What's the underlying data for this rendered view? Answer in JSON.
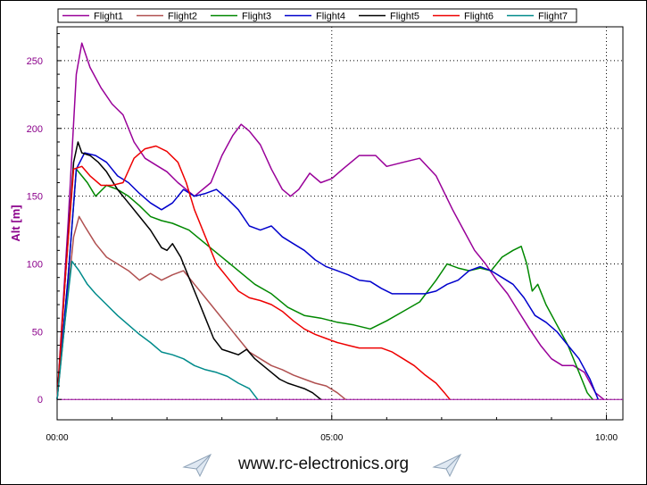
{
  "chart_data": {
    "type": "line",
    "title": "",
    "xlabel": "",
    "ylabel": "Alt [m]",
    "x_unit": "minutes",
    "xlim": [
      0,
      10.3
    ],
    "ylim": [
      -15,
      275
    ],
    "x_ticks": [
      {
        "value": 0,
        "label": "00:00"
      },
      {
        "value": 5,
        "label": "05:00"
      },
      {
        "value": 10,
        "label": "10:00"
      }
    ],
    "y_ticks": [
      0,
      50,
      100,
      150,
      200,
      250
    ],
    "grid": "dotted",
    "legend_position": "top",
    "zero_line_color": "#990099",
    "series": [
      {
        "name": "Flight1",
        "color": "#990099",
        "points": [
          [
            0,
            0
          ],
          [
            0.2,
            130
          ],
          [
            0.35,
            240
          ],
          [
            0.45,
            263
          ],
          [
            0.6,
            245
          ],
          [
            0.8,
            230
          ],
          [
            1.0,
            218
          ],
          [
            1.2,
            210
          ],
          [
            1.4,
            190
          ],
          [
            1.6,
            178
          ],
          [
            1.8,
            173
          ],
          [
            2.0,
            168
          ],
          [
            2.2,
            160
          ],
          [
            2.5,
            150
          ],
          [
            2.8,
            160
          ],
          [
            3.0,
            180
          ],
          [
            3.2,
            195
          ],
          [
            3.35,
            203
          ],
          [
            3.5,
            198
          ],
          [
            3.7,
            188
          ],
          [
            3.9,
            170
          ],
          [
            4.1,
            155
          ],
          [
            4.25,
            150
          ],
          [
            4.4,
            155
          ],
          [
            4.6,
            167
          ],
          [
            4.8,
            160
          ],
          [
            5.0,
            163
          ],
          [
            5.2,
            170
          ],
          [
            5.5,
            180
          ],
          [
            5.8,
            180
          ],
          [
            6.0,
            172
          ],
          [
            6.3,
            175
          ],
          [
            6.6,
            178
          ],
          [
            6.9,
            165
          ],
          [
            7.2,
            140
          ],
          [
            7.4,
            125
          ],
          [
            7.6,
            110
          ],
          [
            7.8,
            100
          ],
          [
            8.0,
            88
          ],
          [
            8.2,
            78
          ],
          [
            8.4,
            65
          ],
          [
            8.6,
            52
          ],
          [
            8.8,
            40
          ],
          [
            9.0,
            30
          ],
          [
            9.2,
            25
          ],
          [
            9.4,
            25
          ],
          [
            9.6,
            20
          ],
          [
            9.8,
            5
          ],
          [
            9.95,
            0
          ]
        ]
      },
      {
        "name": "Flight2",
        "color": "#b05050",
        "points": [
          [
            0,
            0
          ],
          [
            0.15,
            60
          ],
          [
            0.3,
            120
          ],
          [
            0.4,
            135
          ],
          [
            0.5,
            128
          ],
          [
            0.7,
            115
          ],
          [
            0.9,
            105
          ],
          [
            1.1,
            100
          ],
          [
            1.3,
            95
          ],
          [
            1.5,
            88
          ],
          [
            1.7,
            93
          ],
          [
            1.9,
            88
          ],
          [
            2.1,
            92
          ],
          [
            2.3,
            95
          ],
          [
            2.5,
            85
          ],
          [
            2.7,
            75
          ],
          [
            2.9,
            65
          ],
          [
            3.1,
            55
          ],
          [
            3.3,
            45
          ],
          [
            3.5,
            35
          ],
          [
            3.7,
            30
          ],
          [
            3.9,
            25
          ],
          [
            4.1,
            22
          ],
          [
            4.3,
            18
          ],
          [
            4.5,
            15
          ],
          [
            4.7,
            12
          ],
          [
            4.9,
            10
          ],
          [
            5.1,
            5
          ],
          [
            5.25,
            0
          ]
        ]
      },
      {
        "name": "Flight3",
        "color": "#008800",
        "points": [
          [
            0,
            0
          ],
          [
            0.2,
            90
          ],
          [
            0.35,
            170
          ],
          [
            0.45,
            165
          ],
          [
            0.55,
            160
          ],
          [
            0.7,
            150
          ],
          [
            0.9,
            158
          ],
          [
            1.1,
            155
          ],
          [
            1.3,
            150
          ],
          [
            1.5,
            143
          ],
          [
            1.7,
            135
          ],
          [
            1.9,
            132
          ],
          [
            2.1,
            130
          ],
          [
            2.4,
            125
          ],
          [
            2.7,
            115
          ],
          [
            3.0,
            105
          ],
          [
            3.3,
            95
          ],
          [
            3.6,
            85
          ],
          [
            3.9,
            78
          ],
          [
            4.2,
            68
          ],
          [
            4.5,
            62
          ],
          [
            4.8,
            60
          ],
          [
            5.1,
            57
          ],
          [
            5.4,
            55
          ],
          [
            5.7,
            52
          ],
          [
            6.0,
            58
          ],
          [
            6.3,
            65
          ],
          [
            6.6,
            72
          ],
          [
            6.9,
            88
          ],
          [
            7.1,
            100
          ],
          [
            7.3,
            97
          ],
          [
            7.5,
            95
          ],
          [
            7.7,
            97
          ],
          [
            7.9,
            95
          ],
          [
            8.1,
            105
          ],
          [
            8.3,
            110
          ],
          [
            8.45,
            113
          ],
          [
            8.55,
            100
          ],
          [
            8.65,
            80
          ],
          [
            8.75,
            85
          ],
          [
            8.9,
            70
          ],
          [
            9.1,
            55
          ],
          [
            9.3,
            40
          ],
          [
            9.5,
            20
          ],
          [
            9.65,
            5
          ],
          [
            9.75,
            0
          ]
        ]
      },
      {
        "name": "Flight4",
        "color": "#0000cc",
        "points": [
          [
            0,
            0
          ],
          [
            0.2,
            90
          ],
          [
            0.35,
            170
          ],
          [
            0.5,
            182
          ],
          [
            0.7,
            180
          ],
          [
            0.9,
            175
          ],
          [
            1.1,
            165
          ],
          [
            1.3,
            160
          ],
          [
            1.5,
            152
          ],
          [
            1.7,
            145
          ],
          [
            1.9,
            140
          ],
          [
            2.1,
            145
          ],
          [
            2.3,
            155
          ],
          [
            2.5,
            150
          ],
          [
            2.7,
            152
          ],
          [
            2.9,
            155
          ],
          [
            3.1,
            148
          ],
          [
            3.3,
            140
          ],
          [
            3.5,
            128
          ],
          [
            3.7,
            125
          ],
          [
            3.9,
            128
          ],
          [
            4.1,
            120
          ],
          [
            4.3,
            115
          ],
          [
            4.5,
            110
          ],
          [
            4.7,
            103
          ],
          [
            4.9,
            98
          ],
          [
            5.1,
            95
          ],
          [
            5.3,
            92
          ],
          [
            5.5,
            88
          ],
          [
            5.7,
            87
          ],
          [
            5.9,
            82
          ],
          [
            6.1,
            78
          ],
          [
            6.3,
            78
          ],
          [
            6.5,
            78
          ],
          [
            6.7,
            78
          ],
          [
            6.9,
            80
          ],
          [
            7.1,
            85
          ],
          [
            7.3,
            88
          ],
          [
            7.5,
            95
          ],
          [
            7.7,
            98
          ],
          [
            7.9,
            95
          ],
          [
            8.1,
            90
          ],
          [
            8.3,
            85
          ],
          [
            8.5,
            75
          ],
          [
            8.7,
            62
          ],
          [
            8.9,
            57
          ],
          [
            9.1,
            50
          ],
          [
            9.3,
            40
          ],
          [
            9.5,
            30
          ],
          [
            9.7,
            15
          ],
          [
            9.85,
            0
          ]
        ]
      },
      {
        "name": "Flight5",
        "color": "#000000",
        "points": [
          [
            0,
            0
          ],
          [
            0.15,
            90
          ],
          [
            0.3,
            175
          ],
          [
            0.38,
            190
          ],
          [
            0.45,
            182
          ],
          [
            0.6,
            180
          ],
          [
            0.75,
            175
          ],
          [
            0.9,
            168
          ],
          [
            1.1,
            155
          ],
          [
            1.3,
            145
          ],
          [
            1.5,
            135
          ],
          [
            1.7,
            125
          ],
          [
            1.9,
            112
          ],
          [
            2.0,
            110
          ],
          [
            2.1,
            115
          ],
          [
            2.25,
            105
          ],
          [
            2.4,
            90
          ],
          [
            2.55,
            75
          ],
          [
            2.7,
            60
          ],
          [
            2.85,
            45
          ],
          [
            3.0,
            37
          ],
          [
            3.15,
            35
          ],
          [
            3.3,
            33
          ],
          [
            3.45,
            37
          ],
          [
            3.6,
            30
          ],
          [
            3.75,
            25
          ],
          [
            3.9,
            20
          ],
          [
            4.05,
            15
          ],
          [
            4.2,
            12
          ],
          [
            4.35,
            10
          ],
          [
            4.5,
            8
          ],
          [
            4.65,
            5
          ],
          [
            4.8,
            0
          ]
        ]
      },
      {
        "name": "Flight6",
        "color": "#ee0000",
        "points": [
          [
            0,
            0
          ],
          [
            0.15,
            90
          ],
          [
            0.3,
            170
          ],
          [
            0.45,
            172
          ],
          [
            0.6,
            165
          ],
          [
            0.8,
            158
          ],
          [
            1.0,
            158
          ],
          [
            1.2,
            160
          ],
          [
            1.4,
            178
          ],
          [
            1.6,
            185
          ],
          [
            1.8,
            187
          ],
          [
            2.0,
            183
          ],
          [
            2.2,
            175
          ],
          [
            2.35,
            160
          ],
          [
            2.5,
            140
          ],
          [
            2.7,
            120
          ],
          [
            2.9,
            100
          ],
          [
            3.1,
            90
          ],
          [
            3.3,
            80
          ],
          [
            3.5,
            75
          ],
          [
            3.7,
            73
          ],
          [
            3.9,
            70
          ],
          [
            4.1,
            65
          ],
          [
            4.3,
            58
          ],
          [
            4.5,
            52
          ],
          [
            4.7,
            48
          ],
          [
            4.9,
            45
          ],
          [
            5.1,
            42
          ],
          [
            5.3,
            40
          ],
          [
            5.5,
            38
          ],
          [
            5.7,
            38
          ],
          [
            5.9,
            38
          ],
          [
            6.1,
            35
          ],
          [
            6.3,
            30
          ],
          [
            6.5,
            25
          ],
          [
            6.7,
            18
          ],
          [
            6.9,
            12
          ],
          [
            7.05,
            5
          ],
          [
            7.15,
            0
          ]
        ]
      },
      {
        "name": "Flight7",
        "color": "#008b8b",
        "points": [
          [
            0,
            0
          ],
          [
            0.15,
            60
          ],
          [
            0.27,
            102
          ],
          [
            0.4,
            95
          ],
          [
            0.55,
            85
          ],
          [
            0.7,
            78
          ],
          [
            0.9,
            70
          ],
          [
            1.1,
            62
          ],
          [
            1.3,
            55
          ],
          [
            1.5,
            48
          ],
          [
            1.7,
            42
          ],
          [
            1.9,
            35
          ],
          [
            2.1,
            33
          ],
          [
            2.3,
            30
          ],
          [
            2.5,
            25
          ],
          [
            2.7,
            22
          ],
          [
            2.9,
            20
          ],
          [
            3.1,
            17
          ],
          [
            3.3,
            12
          ],
          [
            3.5,
            8
          ],
          [
            3.65,
            0
          ]
        ]
      }
    ]
  },
  "footer": {
    "site": "www.rc-electronics.org"
  }
}
